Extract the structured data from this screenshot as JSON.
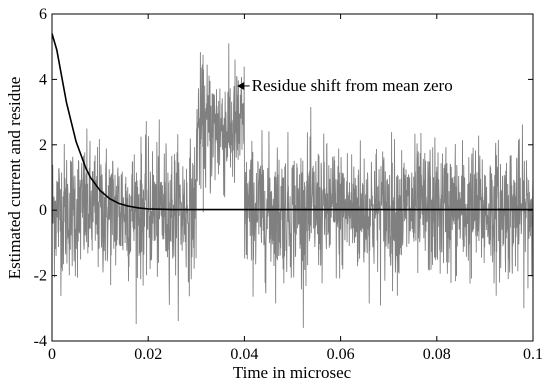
{
  "chart_data": {
    "type": "line",
    "title": "",
    "xlabel": "Time in microsec",
    "ylabel": "Estimated current and residue",
    "xlim": [
      0,
      0.1
    ],
    "ylim": [
      -4,
      6
    ],
    "xticks": [
      0,
      0.02,
      0.04,
      0.06,
      0.08,
      0.1
    ],
    "xtick_labels": [
      "0",
      "0.02",
      "0.04",
      "0.06",
      "0.08",
      "0.1"
    ],
    "yticks": [
      -4,
      -2,
      0,
      2,
      4,
      6
    ],
    "ytick_labels": [
      "-4",
      "-2",
      "0",
      "2",
      "4",
      "6"
    ],
    "grid": false,
    "series": [
      {
        "color": "#808080",
        "noise_sigma": 1.0,
        "segments": [
          {
            "x_start": 0,
            "x_end": 0.03,
            "mean": 0
          },
          {
            "x_start": 0.03,
            "x_end": 0.04,
            "mean": 2.5
          },
          {
            "x_start": 0.04,
            "x_end": 0.1,
            "mean": 0
          }
        ],
        "y_range_observed": [
          -3.6,
          5.1
        ]
      },
      {
        "color": "#000000",
        "x": [
          0,
          0.001,
          0.002,
          0.003,
          0.004,
          0.005,
          0.006,
          0.007,
          0.008,
          0.009,
          0.01,
          0.012,
          0.014,
          0.016,
          0.018,
          0.02,
          0.025,
          0.03,
          0.04,
          0.05,
          0.06,
          0.07,
          0.08,
          0.09,
          0.1
        ],
        "y": [
          5.4,
          4.9,
          4.1,
          3.3,
          2.7,
          2.1,
          1.7,
          1.3,
          1.0,
          0.8,
          0.6,
          0.35,
          0.2,
          0.12,
          0.07,
          0.04,
          0.02,
          0.02,
          0.02,
          0.02,
          0.02,
          0.02,
          0.02,
          0.02,
          0.02
        ]
      }
    ],
    "annotations": [
      {
        "text": "Residue shift from mean zero",
        "x": 0.0415,
        "y": 3.8,
        "arrow_to": [
          0.0385,
          3.8
        ]
      }
    ]
  }
}
